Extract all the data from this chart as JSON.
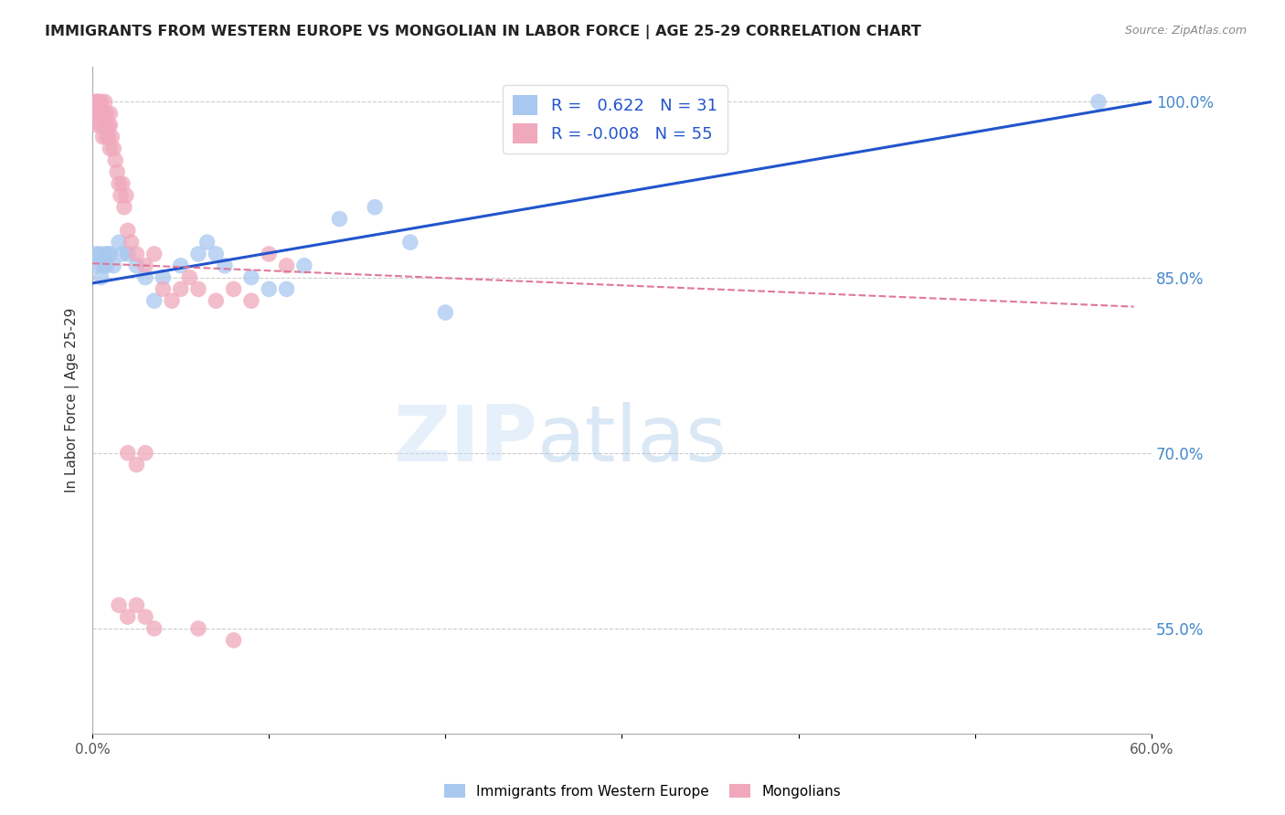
{
  "title": "IMMIGRANTS FROM WESTERN EUROPE VS MONGOLIAN IN LABOR FORCE | AGE 25-29 CORRELATION CHART",
  "source": "Source: ZipAtlas.com",
  "xlabel": "",
  "ylabel": "In Labor Force | Age 25-29",
  "xlim": [
    0.0,
    0.6
  ],
  "ylim": [
    0.46,
    1.03
  ],
  "xticks": [
    0.0,
    0.1,
    0.2,
    0.3,
    0.4,
    0.5,
    0.6
  ],
  "xticklabels": [
    "0.0%",
    "",
    "",
    "",
    "",
    "",
    "60.0%"
  ],
  "yticks_right": [
    0.55,
    0.7,
    0.85,
    1.0
  ],
  "yticklabels_right": [
    "55.0%",
    "70.0%",
    "85.0%",
    "100.0%"
  ],
  "blue_R": 0.622,
  "blue_N": 31,
  "pink_R": -0.008,
  "pink_N": 55,
  "blue_color": "#a8c8f0",
  "pink_color": "#f0a8bc",
  "blue_line_color": "#2255cc",
  "pink_line_color": "#e07898",
  "watermark_zip": "ZIP",
  "watermark_atlas": "atlas",
  "blue_line_x0": 0.0,
  "blue_line_y0": 0.845,
  "blue_line_x1": 0.6,
  "blue_line_y1": 1.0,
  "pink_line_x0": 0.0,
  "pink_line_y0": 0.862,
  "pink_line_x1": 0.59,
  "pink_line_y1": 0.825,
  "blue_scatter_x": [
    0.002,
    0.003,
    0.004,
    0.005,
    0.006,
    0.007,
    0.008,
    0.009,
    0.01,
    0.012,
    0.015,
    0.017,
    0.02,
    0.025,
    0.03,
    0.035,
    0.04,
    0.05,
    0.06,
    0.065,
    0.07,
    0.075,
    0.09,
    0.1,
    0.11,
    0.12,
    0.14,
    0.16,
    0.18,
    0.2,
    0.57
  ],
  "blue_scatter_y": [
    0.87,
    0.86,
    0.87,
    0.85,
    0.86,
    0.87,
    0.86,
    0.87,
    0.87,
    0.86,
    0.88,
    0.87,
    0.87,
    0.86,
    0.85,
    0.83,
    0.85,
    0.86,
    0.87,
    0.88,
    0.87,
    0.86,
    0.85,
    0.84,
    0.84,
    0.86,
    0.9,
    0.91,
    0.88,
    0.82,
    1.0
  ],
  "pink_scatter_x": [
    0.002,
    0.002,
    0.002,
    0.003,
    0.003,
    0.003,
    0.004,
    0.004,
    0.005,
    0.005,
    0.006,
    0.006,
    0.007,
    0.007,
    0.008,
    0.008,
    0.009,
    0.009,
    0.01,
    0.01,
    0.01,
    0.011,
    0.012,
    0.013,
    0.014,
    0.015,
    0.016,
    0.017,
    0.018,
    0.019,
    0.02,
    0.022,
    0.025,
    0.03,
    0.035,
    0.04,
    0.045,
    0.05,
    0.055,
    0.06,
    0.07,
    0.08,
    0.09,
    0.1,
    0.11,
    0.02,
    0.025,
    0.03,
    0.015,
    0.02,
    0.025,
    0.03,
    0.035,
    0.06,
    0.08
  ],
  "pink_scatter_y": [
    1.0,
    1.0,
    0.99,
    1.0,
    0.99,
    0.98,
    1.0,
    0.99,
    1.0,
    0.98,
    0.99,
    0.97,
    1.0,
    0.98,
    0.99,
    0.97,
    0.98,
    0.97,
    0.99,
    0.98,
    0.96,
    0.97,
    0.96,
    0.95,
    0.94,
    0.93,
    0.92,
    0.93,
    0.91,
    0.92,
    0.89,
    0.88,
    0.87,
    0.86,
    0.87,
    0.84,
    0.83,
    0.84,
    0.85,
    0.84,
    0.83,
    0.84,
    0.83,
    0.87,
    0.86,
    0.7,
    0.69,
    0.7,
    0.57,
    0.56,
    0.57,
    0.56,
    0.55,
    0.55,
    0.54
  ]
}
